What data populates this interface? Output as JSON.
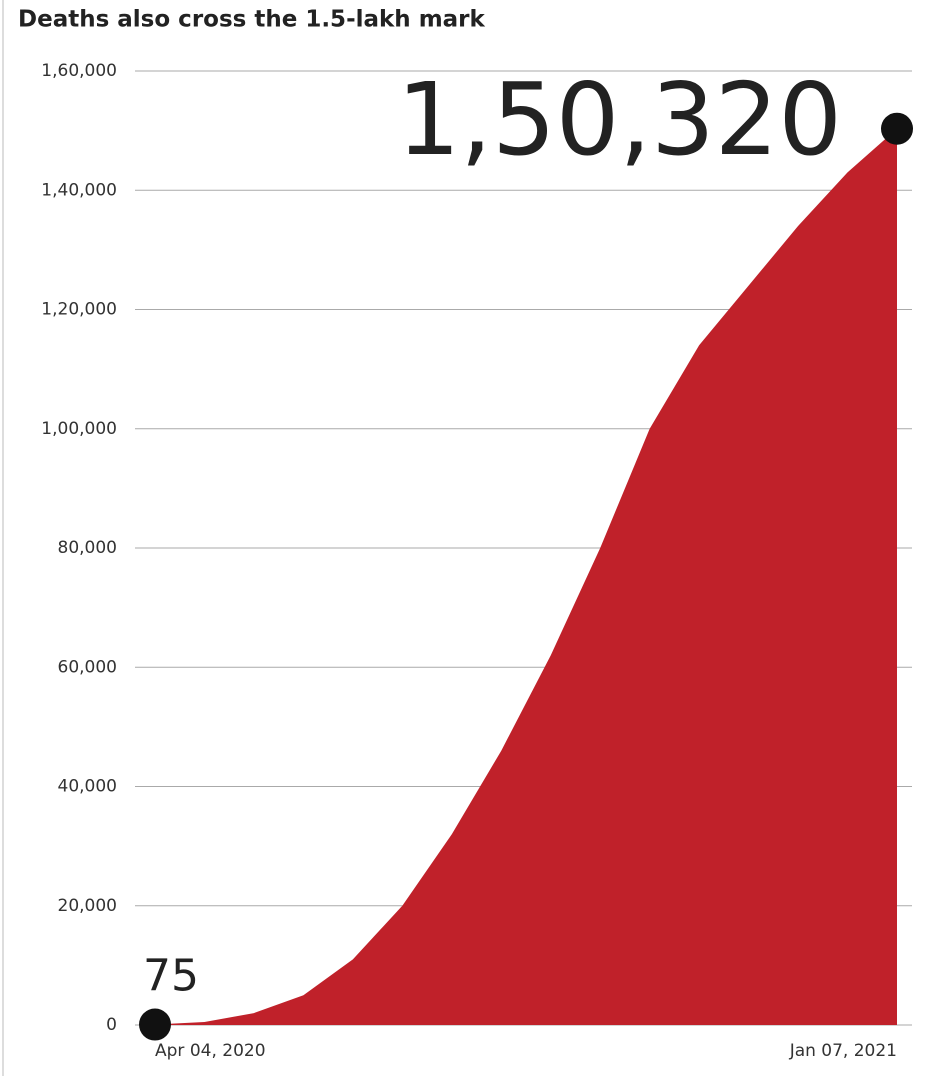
{
  "chart_data": {
    "type": "area",
    "title": "Deaths also cross the 1.5-lakh mark",
    "categories": [
      "Apr 04, 2020",
      null,
      null,
      null,
      null,
      null,
      null,
      null,
      null,
      null,
      null,
      null,
      null,
      null,
      null,
      "Jan 07, 2021"
    ],
    "values": [
      75,
      500,
      2000,
      5000,
      11000,
      20000,
      32000,
      46000,
      62000,
      80000,
      100000,
      114000,
      124000,
      134000,
      143000,
      150320
    ],
    "value_labels": [
      "75",
      null,
      null,
      null,
      null,
      null,
      null,
      null,
      null,
      null,
      null,
      null,
      null,
      null,
      null,
      "1,50,320"
    ],
    "color": "#c0212a",
    "ylim": [
      0,
      160000
    ],
    "yticks": [
      0,
      {
        "value": 20000,
        "label": "20,000"
      },
      {
        "value": 40000,
        "label": "40,000"
      },
      {
        "value": 60000,
        "label": "60,000"
      },
      {
        "value": 80000,
        "label": "80,000"
      },
      {
        "value": 100000,
        "label": "1,00,000"
      },
      {
        "value": 120000,
        "label": "1,20,000"
      },
      {
        "value": 140000,
        "label": "1,40,000"
      },
      {
        "value": 160000,
        "label": "1,60,000"
      }
    ],
    "grid": true
  }
}
